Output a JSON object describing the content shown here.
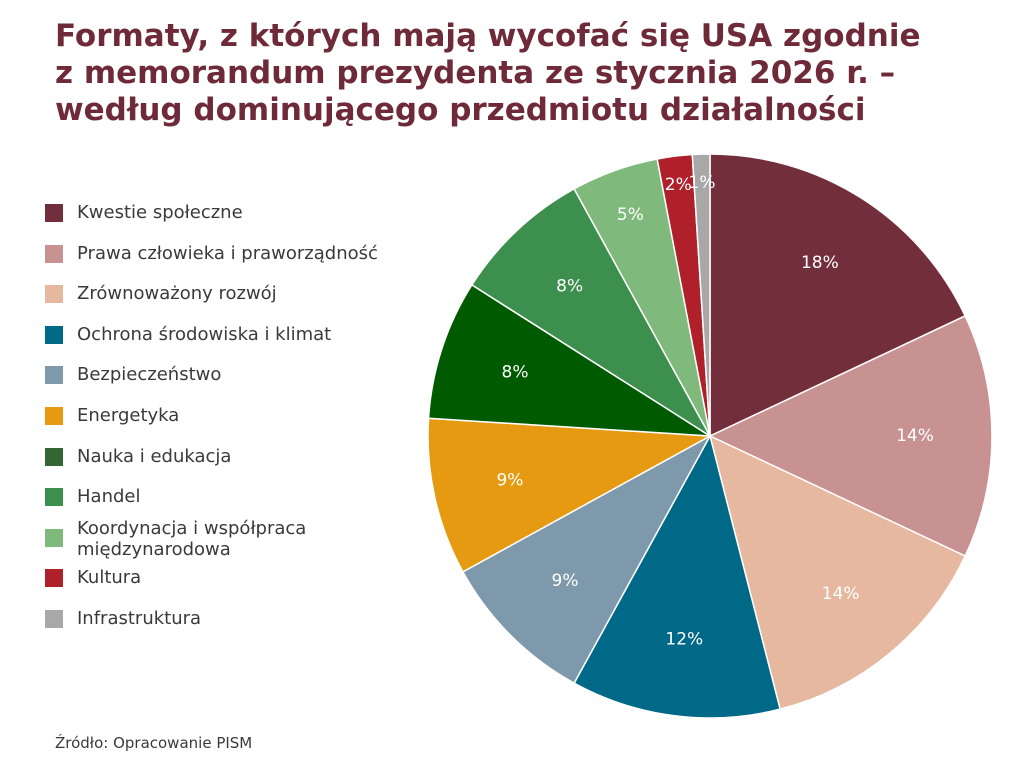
{
  "title_lines": [
    "Formaty, z których mają wycofać się USA zgodnie",
    "z memorandum prezydenta ze stycznia 2026 r. –",
    "według dominującego przedmiotu działalności"
  ],
  "source": "Źródło: Opracowanie PISM",
  "chart_data": {
    "type": "pie",
    "title": "Formaty, z których mają wycofać się USA zgodnie z memorandum prezydenta ze stycznia 2026 r. – według dominującego przedmiotu działalności",
    "legend_position": "left",
    "start": "top, clockwise",
    "slices": [
      {
        "name": "Kwestie społeczne",
        "value": 18,
        "label": "18%",
        "color": "#722f3b",
        "label_color": "#ffffff"
      },
      {
        "name": "Prawa człowieka i praworządność",
        "value": 14,
        "label": "14%",
        "color": "#c99292",
        "label_color": "#ffffff"
      },
      {
        "name": "Zrównoważony rozwój",
        "value": 14,
        "label": "14%",
        "color": "#e6b8a0",
        "label_color": "#ffffff"
      },
      {
        "name": "Ochrona środowiska i klimat",
        "value": 12,
        "label": "12%",
        "color": "#006987",
        "label_color": "#ffffff"
      },
      {
        "name": "Bezpieczeństwo",
        "value": 9,
        "label": "9%",
        "color": "#7f99ac",
        "label_color": "#ffffff"
      },
      {
        "name": "Energetyka",
        "value": 9,
        "label": "9%",
        "color": "#e59a12",
        "label_color": "#ffffff"
      },
      {
        "name": "Nauka i edukacja",
        "value": 8,
        "label": "8%",
        "color": "#005a00",
        "label_color": "#ffffff"
      },
      {
        "name": "Handel",
        "value": 8,
        "label": "8%",
        "color": "#3d8f4d",
        "label_color": "#ffffff"
      },
      {
        "name": "Koordynacja i współpraca\nmiędzynarodowa",
        "value": 5,
        "label": "5%",
        "color": "#7fba7c",
        "label_color": "#ffffff"
      },
      {
        "name": "Kultura",
        "value": 2,
        "label": "2%",
        "color": "#b0202b",
        "label_color": "#ffffff"
      },
      {
        "name": "Infrastruktura",
        "value": 1,
        "label": "1%",
        "color": "#a8a8a8",
        "label_color": "#ffffff"
      }
    ],
    "legend_colors": [
      "#722f3b",
      "#c99292",
      "#e6b8a0",
      "#006987",
      "#7f99ac",
      "#e59a12",
      "#336633",
      "#3d8f4d",
      "#7fba7c",
      "#b0202b",
      "#a8a8a8"
    ]
  }
}
